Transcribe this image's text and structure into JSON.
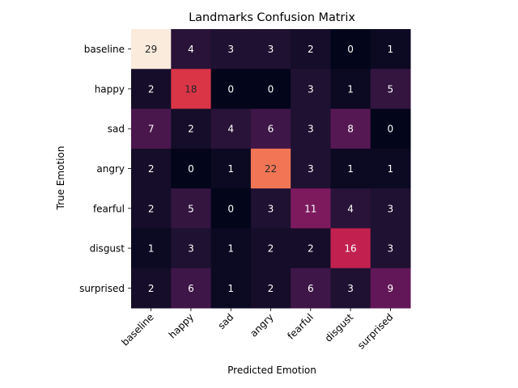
{
  "chart_data": {
    "type": "heatmap",
    "title": "Landmarks Confusion Matrix",
    "xlabel": "Predicted Emotion",
    "ylabel": "True Emotion",
    "x_categories": [
      "baseline",
      "happy",
      "sad",
      "angry",
      "fearful",
      "disgust",
      "surprised"
    ],
    "y_categories": [
      "baseline",
      "happy",
      "sad",
      "angry",
      "fearful",
      "disgust",
      "surprised"
    ],
    "values": [
      [
        29,
        4,
        3,
        3,
        2,
        0,
        1
      ],
      [
        2,
        18,
        0,
        0,
        3,
        1,
        5
      ],
      [
        7,
        2,
        4,
        6,
        3,
        8,
        0
      ],
      [
        2,
        0,
        1,
        22,
        3,
        1,
        1
      ],
      [
        2,
        5,
        0,
        3,
        11,
        4,
        3
      ],
      [
        1,
        3,
        1,
        2,
        2,
        16,
        3
      ],
      [
        2,
        6,
        1,
        2,
        6,
        3,
        9
      ]
    ],
    "value_range": [
      0,
      29
    ],
    "colormap": "rocket",
    "colorbar": false,
    "grid": false
  }
}
